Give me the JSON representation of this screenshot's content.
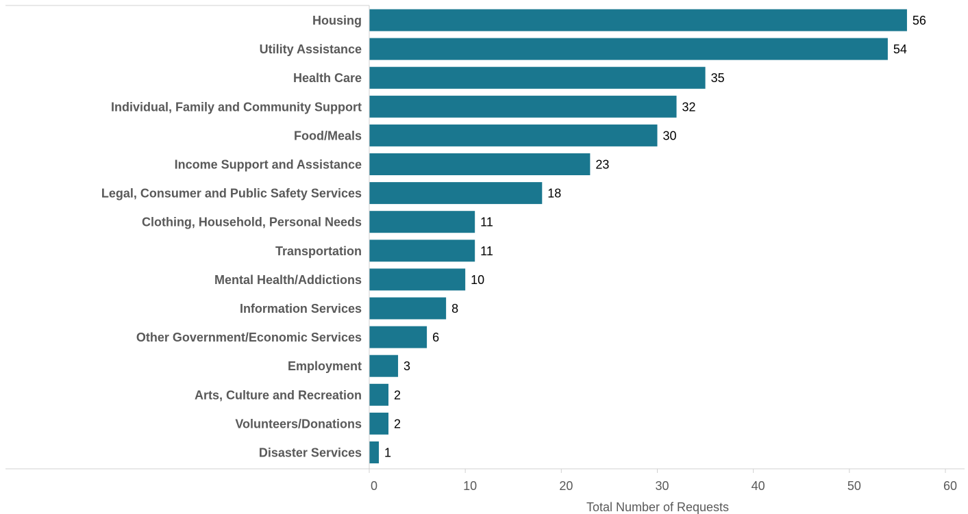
{
  "chart_data": {
    "type": "bar",
    "orientation": "horizontal",
    "title": "",
    "xlabel": "Total Number of Requests",
    "ylabel": "",
    "xlim": [
      0,
      60
    ],
    "xticks": [
      0,
      10,
      20,
      30,
      40,
      50,
      60
    ],
    "grid": false,
    "categories": [
      "Housing",
      "Utility Assistance",
      "Health Care",
      "Individual, Family and Community Support",
      "Food/Meals",
      "Income Support and Assistance",
      "Legal, Consumer and Public Safety Services",
      "Clothing, Household, Personal Needs",
      "Transportation",
      "Mental Health/Addictions",
      "Information Services",
      "Other Government/Economic Services",
      "Employment",
      "Arts, Culture and Recreation",
      "Volunteers/Donations",
      "Disaster Services"
    ],
    "values": [
      56,
      54,
      35,
      32,
      30,
      23,
      18,
      11,
      11,
      10,
      8,
      6,
      3,
      2,
      2,
      1
    ],
    "bar_color": "#1a778f",
    "axis_color": "#d0d0d0"
  }
}
